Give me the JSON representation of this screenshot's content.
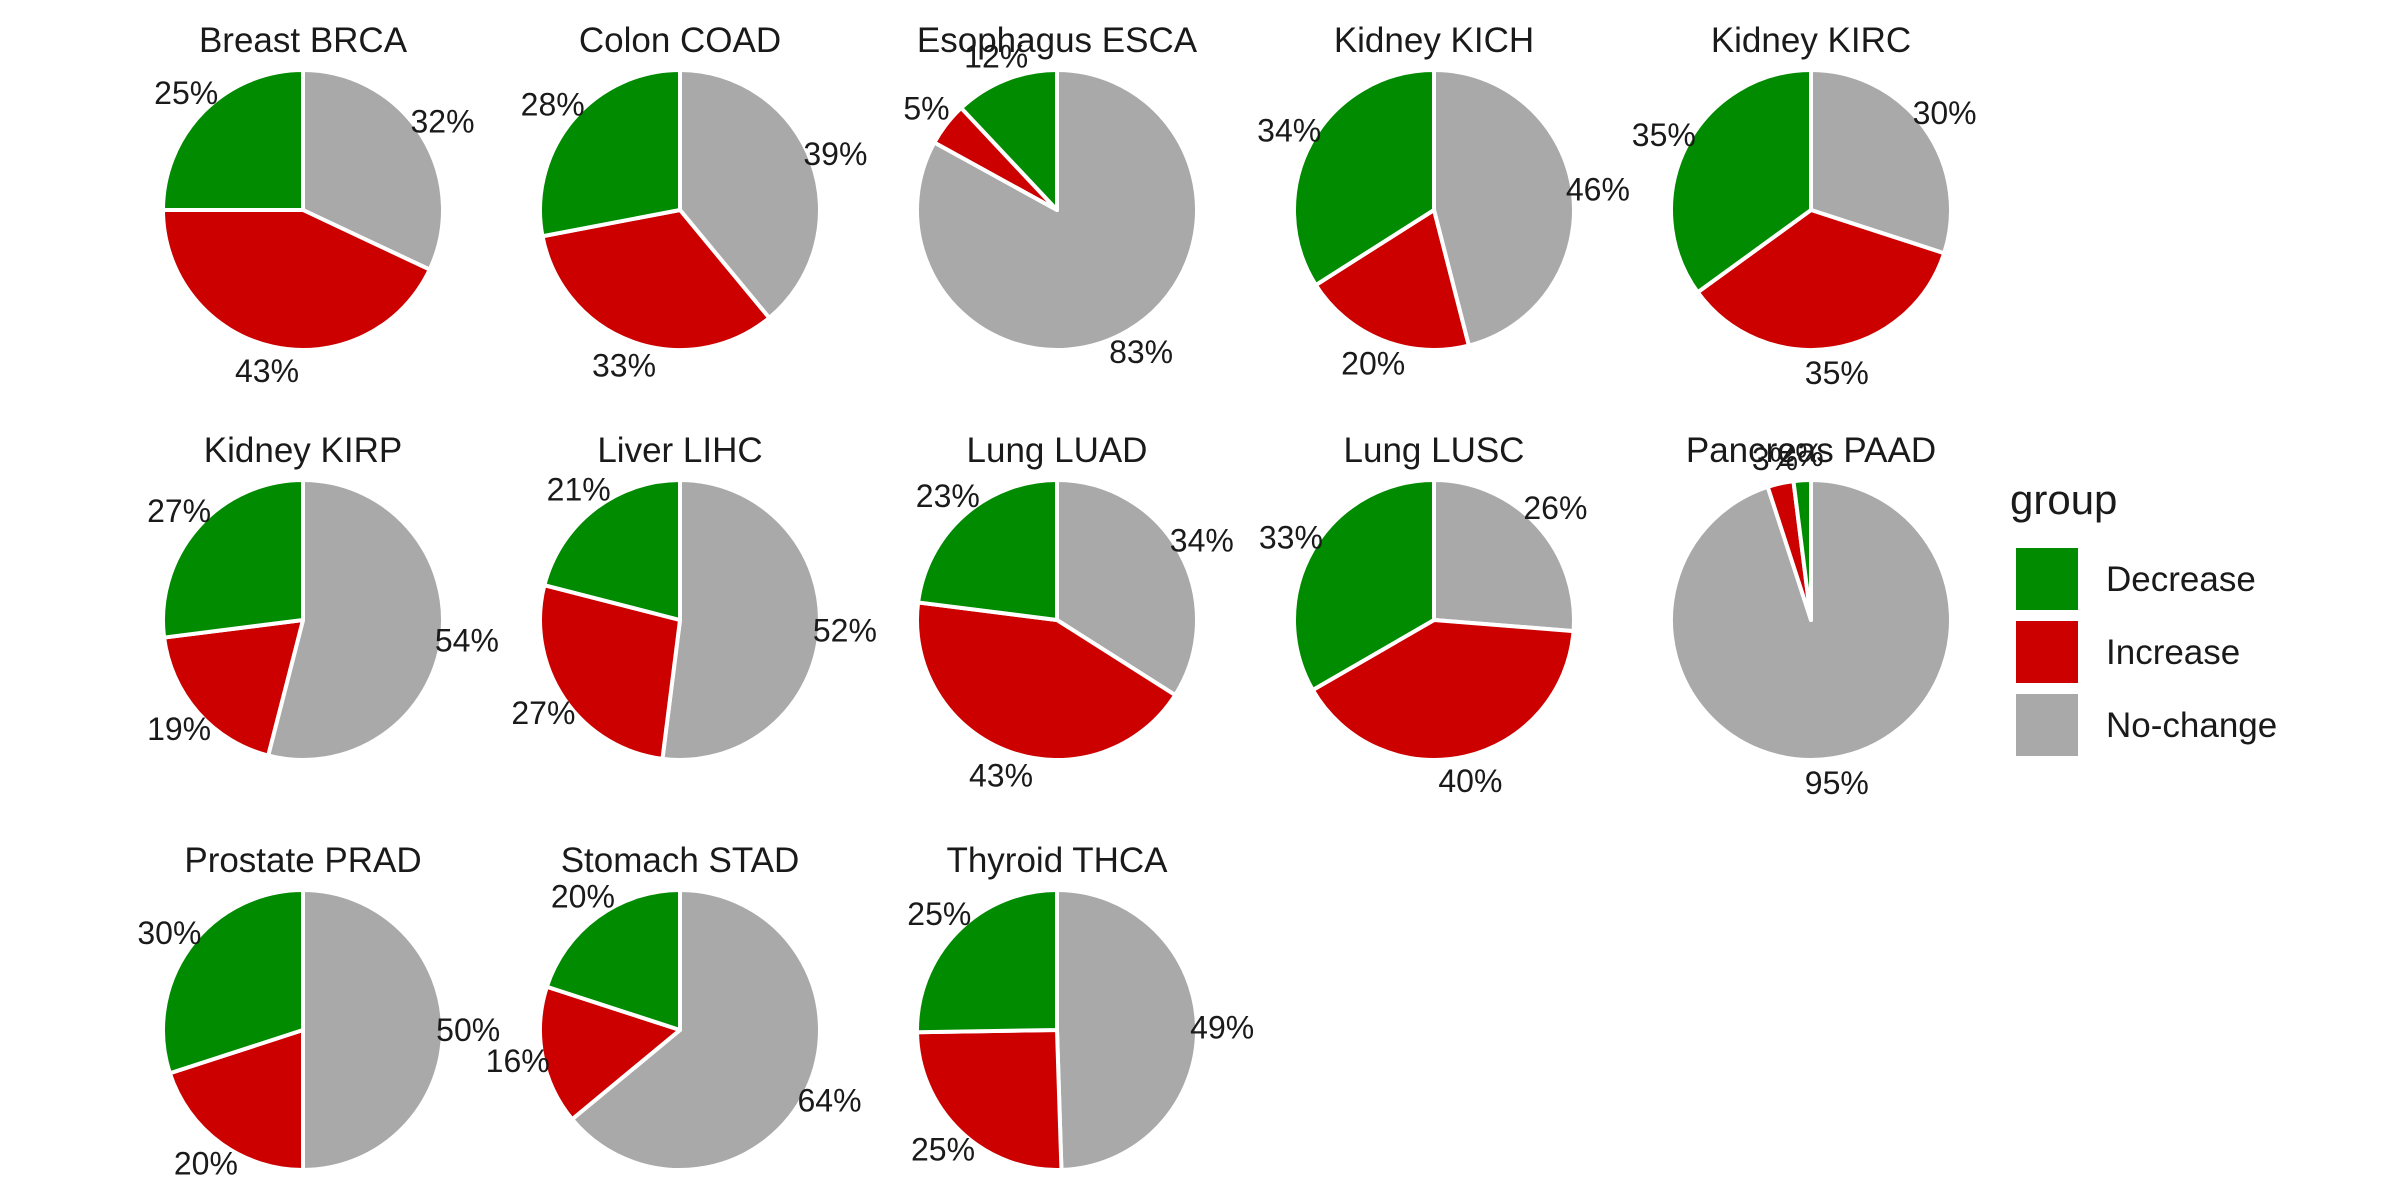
{
  "chart_data": {
    "type": "pie",
    "legend": {
      "title": "group",
      "placement": "right",
      "entries": [
        {
          "name": "Decrease",
          "color": "#008B00"
        },
        {
          "name": "Increase",
          "color": "#CD0000"
        },
        {
          "name": "No-change",
          "color": "#A9A9A9"
        }
      ]
    },
    "slice_order": [
      "No-change",
      "Increase",
      "Decrease"
    ],
    "panels": [
      {
        "title": "Breast BRCA",
        "values": {
          "Decrease": 25,
          "Increase": 43,
          "No-change": 32
        }
      },
      {
        "title": "Colon COAD",
        "values": {
          "Decrease": 28,
          "Increase": 33,
          "No-change": 39
        }
      },
      {
        "title": "Esophagus ESCA",
        "values": {
          "Decrease": 12,
          "Increase": 5,
          "No-change": 83
        }
      },
      {
        "title": "Kidney KICH",
        "values": {
          "Decrease": 34,
          "Increase": 20,
          "No-change": 46
        }
      },
      {
        "title": "Kidney KIRC",
        "values": {
          "Decrease": 35,
          "Increase": 35,
          "No-change": 30
        }
      },
      {
        "title": "Kidney KIRP",
        "values": {
          "Decrease": 27,
          "Increase": 19,
          "No-change": 54
        }
      },
      {
        "title": "Liver LIHC",
        "values": {
          "Decrease": 21,
          "Increase": 27,
          "No-change": 52
        }
      },
      {
        "title": "Lung LUAD",
        "values": {
          "Decrease": 23,
          "Increase": 43,
          "No-change": 34
        }
      },
      {
        "title": "Lung LUSC",
        "values": {
          "Decrease": 33,
          "Increase": 40,
          "No-change": 26
        }
      },
      {
        "title": "Pancreas PAAD",
        "values": {
          "Decrease": 2,
          "Increase": 3,
          "No-change": 95
        }
      },
      {
        "title": "Prostate PRAD",
        "values": {
          "Decrease": 30,
          "Increase": 20,
          "No-change": 50
        }
      },
      {
        "title": "Stomach STAD",
        "values": {
          "Decrease": 20,
          "Increase": 16,
          "No-change": 64
        }
      },
      {
        "title": "Thyroid THCA",
        "values": {
          "Decrease": 25,
          "Increase": 25,
          "No-change": 49
        }
      }
    ]
  }
}
